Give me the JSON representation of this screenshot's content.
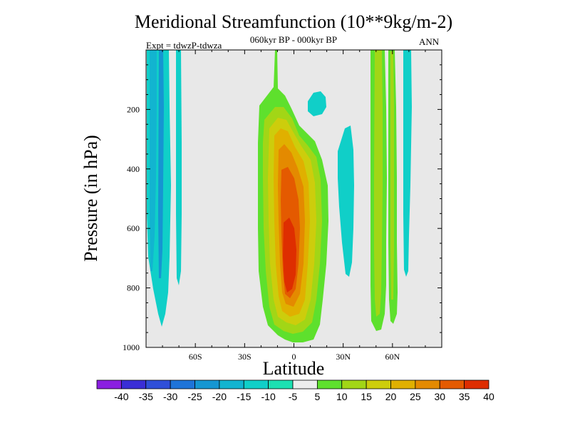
{
  "chart_data": {
    "type": "contour",
    "title": "Meridional Streamfunction (10**9kg/m-2)",
    "subtitle": "060kyr BP - 000kyr BP",
    "experiment": "Expt = tdwzP-tdwza",
    "season": "ANN",
    "xlabel": "Latitude",
    "ylabel": "Pressure (in hPa)",
    "xlim": [
      -90,
      90
    ],
    "ylim": [
      0,
      1000
    ],
    "y_inverted": true,
    "x_ticks": [
      {
        "value": -60,
        "label": "60S"
      },
      {
        "value": -30,
        "label": "30S"
      },
      {
        "value": 0,
        "label": "0"
      },
      {
        "value": 30,
        "label": "30N"
      },
      {
        "value": 60,
        "label": "60N"
      }
    ],
    "y_ticks": [
      {
        "value": 200,
        "label": "200"
      },
      {
        "value": 400,
        "label": "400"
      },
      {
        "value": 600,
        "label": "600"
      },
      {
        "value": 800,
        "label": "800"
      },
      {
        "value": 1000,
        "label": "1000"
      }
    ],
    "background_color": "#e8e8e8",
    "colorbar": {
      "labels": [
        "-40",
        "-35",
        "-30",
        "-25",
        "-20",
        "-15",
        "-10",
        "-5",
        "5",
        "10",
        "15",
        "20",
        "25",
        "30",
        "35",
        "40"
      ],
      "colors": [
        "#8a1fe0",
        "#3a2ed6",
        "#2f4fd8",
        "#1e74d9",
        "#1596d2",
        "#12b4d0",
        "#10cfc8",
        "#1de0b2",
        "#ededed",
        "#5ee02d",
        "#a2d616",
        "#cdcd0c",
        "#e0b000",
        "#e48a00",
        "#e45a00",
        "#de2e00"
      ]
    },
    "bands": [
      {
        "name": "southern-polar-cell-1",
        "value_range": [
          -15,
          -5
        ],
        "color": "#12b4d0",
        "lat": [
          -88,
          -80
        ],
        "p": [
          15,
          930
        ]
      },
      {
        "name": "southern-polar-cell-2",
        "value_range": [
          -20,
          -15
        ],
        "color": "#1596d2",
        "lat": [
          -84,
          -79
        ],
        "p": [
          15,
          600
        ]
      },
      {
        "name": "southern-polar-cell-3",
        "value_range": [
          -10,
          -5
        ],
        "color": "#10cfc8",
        "lat": [
          -75,
          -72
        ],
        "p": [
          15,
          790
        ]
      },
      {
        "name": "hadley-cell",
        "value_range": [
          5,
          40
        ],
        "color": "#de2e00",
        "lat": [
          -12,
          12
        ],
        "p": [
          110,
          985
        ],
        "max_value": 40,
        "max_lat": -2,
        "max_p": 780
      },
      {
        "name": "northern-sub-cell-small",
        "value_range": [
          -10,
          -5
        ],
        "color": "#10cfc8",
        "lat": [
          7,
          14
        ],
        "p": [
          175,
          205
        ]
      },
      {
        "name": "northern-sub-cell-mid",
        "value_range": [
          -10,
          -5
        ],
        "color": "#10cfc8",
        "lat": [
          28,
          38
        ],
        "p": [
          295,
          725
        ]
      },
      {
        "name": "northern-mid-lat-1",
        "value_range": [
          5,
          15
        ],
        "color": "#a2d616",
        "lat": [
          48,
          55
        ],
        "p": [
          15,
          970
        ]
      },
      {
        "name": "northern-mid-lat-2",
        "value_range": [
          5,
          15
        ],
        "color": "#a2d616",
        "lat": [
          58,
          65
        ],
        "p": [
          15,
          970
        ]
      },
      {
        "name": "northern-polar-cell",
        "value_range": [
          -10,
          -5
        ],
        "color": "#10cfc8",
        "lat": [
          69,
          75
        ],
        "p": [
          15,
          770
        ]
      }
    ]
  }
}
